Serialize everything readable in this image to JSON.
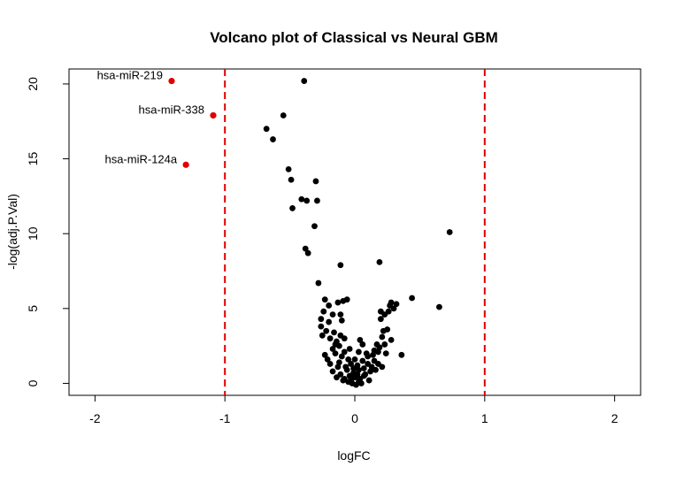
{
  "chart_data": {
    "type": "scatter",
    "title": "Volcano plot of Classical vs Neural GBM",
    "xlabel": "logFC",
    "ylabel": "-log(adj.P.Val)",
    "xlim": [
      -2.2,
      2.2
    ],
    "ylim": [
      -0.8,
      21
    ],
    "x_ticks": [
      "-2",
      "-1",
      "0",
      "1",
      "2"
    ],
    "y_ticks": [
      "0",
      "5",
      "10",
      "15",
      "20"
    ],
    "thresholds": {
      "x": [
        -1,
        1
      ],
      "color": "#e00000",
      "style": "dashed"
    },
    "highlight_color": "#e00000",
    "point_color": "#000000",
    "highlighted": [
      {
        "label": "hsa-miR-219",
        "x": -1.41,
        "y": 20.2
      },
      {
        "label": "hsa-miR-338",
        "x": -1.09,
        "y": 17.9
      },
      {
        "label": "hsa-miR-124a",
        "x": -1.3,
        "y": 14.6
      }
    ],
    "points": [
      [
        -0.39,
        20.2
      ],
      [
        -0.55,
        17.9
      ],
      [
        -0.68,
        17.0
      ],
      [
        -0.63,
        16.3
      ],
      [
        -0.51,
        14.3
      ],
      [
        -0.49,
        13.6
      ],
      [
        -0.3,
        13.5
      ],
      [
        -0.41,
        12.3
      ],
      [
        -0.37,
        12.2
      ],
      [
        -0.29,
        12.2
      ],
      [
        -0.48,
        11.7
      ],
      [
        -0.31,
        10.5
      ],
      [
        0.73,
        10.1
      ],
      [
        -0.38,
        9.0
      ],
      [
        -0.36,
        8.7
      ],
      [
        0.19,
        8.1
      ],
      [
        -0.11,
        7.9
      ],
      [
        -0.28,
        6.7
      ],
      [
        0.44,
        5.7
      ],
      [
        0.65,
        5.1
      ],
      [
        -0.23,
        5.6
      ],
      [
        -0.06,
        5.6
      ],
      [
        -0.09,
        5.5
      ],
      [
        -0.2,
        5.2
      ],
      [
        -0.13,
        5.4
      ],
      [
        0.28,
        5.4
      ],
      [
        0.32,
        5.3
      ],
      [
        0.27,
        5.2
      ],
      [
        -0.24,
        4.8
      ],
      [
        -0.17,
        4.6
      ],
      [
        -0.11,
        4.6
      ],
      [
        0.2,
        4.8
      ],
      [
        0.23,
        4.6
      ],
      [
        0.26,
        4.8
      ],
      [
        0.3,
        5.0
      ],
      [
        -0.26,
        4.3
      ],
      [
        -0.2,
        4.1
      ],
      [
        -0.1,
        4.2
      ],
      [
        0.2,
        4.3
      ],
      [
        -0.26,
        3.8
      ],
      [
        -0.22,
        3.5
      ],
      [
        -0.16,
        3.4
      ],
      [
        -0.11,
        3.2
      ],
      [
        -0.08,
        3.0
      ],
      [
        0.22,
        3.5
      ],
      [
        0.21,
        3.1
      ],
      [
        0.25,
        3.6
      ],
      [
        -0.19,
        3.0
      ],
      [
        -0.14,
        2.8
      ],
      [
        -0.12,
        2.5
      ],
      [
        -0.17,
        2.3
      ],
      [
        0.28,
        2.9
      ],
      [
        0.17,
        2.6
      ],
      [
        0.19,
        2.4
      ],
      [
        0.06,
        2.6
      ],
      [
        -0.04,
        2.3
      ],
      [
        0.03,
        2.1
      ],
      [
        0.36,
        1.9
      ],
      [
        -0.23,
        1.9
      ],
      [
        -0.15,
        2.0
      ],
      [
        -0.1,
        1.8
      ],
      [
        -0.05,
        1.6
      ],
      [
        0.1,
        1.8
      ],
      [
        0.14,
        1.9
      ],
      [
        0.18,
        2.1
      ],
      [
        0.24,
        2.0
      ],
      [
        -0.19,
        1.3
      ],
      [
        -0.12,
        1.4
      ],
      [
        -0.07,
        1.1
      ],
      [
        -0.03,
        1.3
      ],
      [
        0.02,
        1.2
      ],
      [
        0.06,
        1.5
      ],
      [
        0.1,
        1.3
      ],
      [
        0.15,
        1.5
      ],
      [
        0.21,
        1.1
      ],
      [
        -0.17,
        0.8
      ],
      [
        -0.11,
        0.6
      ],
      [
        -0.06,
        0.9
      ],
      [
        -0.01,
        0.7
      ],
      [
        0.03,
        0.9
      ],
      [
        0.08,
        0.6
      ],
      [
        0.12,
        0.8
      ],
      [
        0.16,
        0.9
      ],
      [
        -0.14,
        0.4
      ],
      [
        -0.08,
        0.3
      ],
      [
        -0.04,
        0.5
      ],
      [
        0.0,
        0.4
      ],
      [
        0.04,
        0.3
      ],
      [
        0.07,
        0.5
      ],
      [
        0.11,
        0.2
      ],
      [
        -0.05,
        0.1
      ],
      [
        -0.02,
        0.0
      ],
      [
        0.01,
        -0.1
      ],
      [
        0.03,
        0.1
      ],
      [
        -0.09,
        0.2
      ],
      [
        0.05,
        0.0
      ],
      [
        -0.03,
        0.2
      ],
      [
        0.02,
        0.6
      ],
      [
        -0.01,
        1.0
      ],
      [
        0.07,
        1.0
      ],
      [
        -0.13,
        1.1
      ],
      [
        0.13,
        1.1
      ],
      [
        0.18,
        1.3
      ],
      [
        -0.21,
        1.6
      ],
      [
        0.0,
        1.6
      ],
      [
        0.09,
        2.0
      ],
      [
        0.15,
        2.2
      ],
      [
        -0.08,
        2.1
      ],
      [
        -0.15,
        2.6
      ],
      [
        0.04,
        2.9
      ],
      [
        0.23,
        2.6
      ],
      [
        -0.25,
        3.2
      ]
    ]
  }
}
